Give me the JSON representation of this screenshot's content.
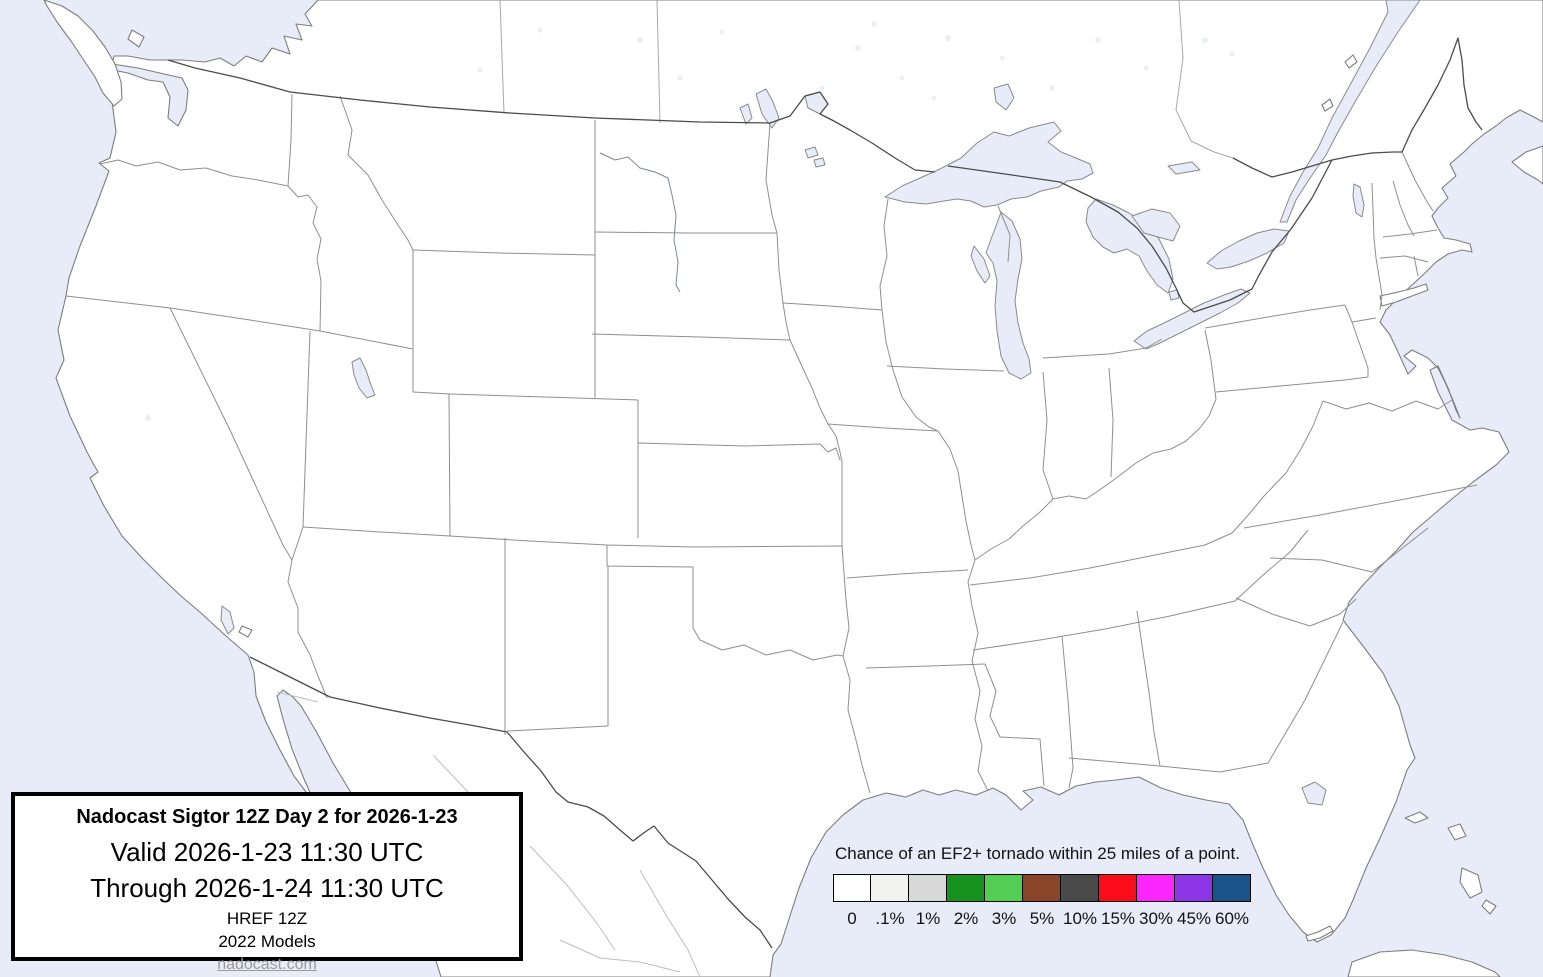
{
  "title_box": {
    "title": "Nadocast Sigtor 12Z Day 2 for 2026-1-23",
    "valid": "Valid 2026-1-23 11:30 UTC",
    "through": "Through 2026-1-24 11:30 UTC",
    "model": "HREF 12Z",
    "models_year": "2022 Models",
    "website": "nadocast.com"
  },
  "legend": {
    "title": "Chance of an EF2+ tornado within 25 miles of a point.",
    "items": [
      {
        "label": "0",
        "color": "#ffffff"
      },
      {
        "label": ".1%",
        "color": "#f2f2f0"
      },
      {
        "label": "1%",
        "color": "#d8d8d8"
      },
      {
        "label": "2%",
        "color": "#17911d"
      },
      {
        "label": "3%",
        "color": "#53cd53"
      },
      {
        "label": "5%",
        "color": "#8b4528"
      },
      {
        "label": "10%",
        "color": "#4a4a4a"
      },
      {
        "label": "15%",
        "color": "#fa0d18"
      },
      {
        "label": "30%",
        "color": "#fb26fb"
      },
      {
        "label": "45%",
        "color": "#8c36e8"
      },
      {
        "label": "60%",
        "color": "#1a528a"
      }
    ]
  },
  "colors": {
    "water": "#e7ecf8",
    "land": "#ffffff",
    "coastline": "#7d7d7d",
    "state_border": "#8f8f8f",
    "national_border": "#4b4b4b"
  }
}
